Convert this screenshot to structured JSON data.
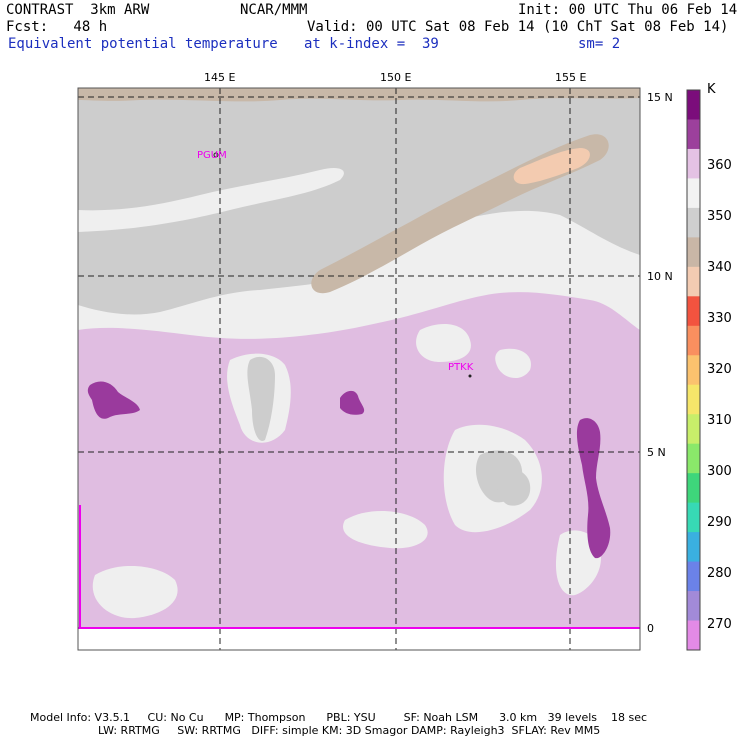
{
  "header": {
    "model": "CONTRAST  3km ARW",
    "org": "NCAR/MMM",
    "init": "Init: 00 UTC Thu 06 Feb 14",
    "fcst": "Fcst:   48 h",
    "valid": "Valid: 00 UTC Sat 08 Feb 14 (10 ChT Sat 08 Feb 14)",
    "field": "Equivalent potential temperature",
    "level": "at k-index =  39",
    "smooth": "sm= 2"
  },
  "map": {
    "lon_ticks": [
      "145 E",
      "150 E",
      "155 E"
    ],
    "lat_ticks": [
      "15 N",
      "10 N",
      "5 N",
      "0"
    ],
    "stations": [
      "PGUM",
      "PTKK"
    ],
    "colors": {
      "bg": "#efefef",
      "gray": "#cdcdcd",
      "tan": "#c8b8a8",
      "peach": "#f3cbb0",
      "lilac": "#e0bde1",
      "purple": "#9a3a9d",
      "dash": "#222222",
      "station": "#ee00ee"
    }
  },
  "colorbar": {
    "unit": "K",
    "labels": [
      "360",
      "350",
      "340",
      "330",
      "320",
      "310",
      "300",
      "290",
      "280",
      "270"
    ],
    "colors": [
      "#7b0d7b",
      "#9c409c",
      "#e4c2e4",
      "#f2f2f2",
      "#cfcfcf",
      "#c9b6a6",
      "#f3cbb2",
      "#f2533f",
      "#f98f5f",
      "#fbc26e",
      "#f6e66a",
      "#c8ee6a",
      "#8ae86a",
      "#3ed67b",
      "#37d9b5",
      "#3ab0e0",
      "#6b82e8",
      "#a28ad8",
      "#e38ae6"
    ]
  },
  "footer": {
    "line1": "Model Info: V3.5.1     CU: No Cu      MP: Thompson      PBL: YSU        SF: Noah LSM      3.0 km   39 levels    18 sec",
    "line2": "LW: RRTMG     SW: RRTMG   DIFF: simple KM: 3D Smagor DAMP: Rayleigh3  SFLAY: Rev MM5"
  }
}
